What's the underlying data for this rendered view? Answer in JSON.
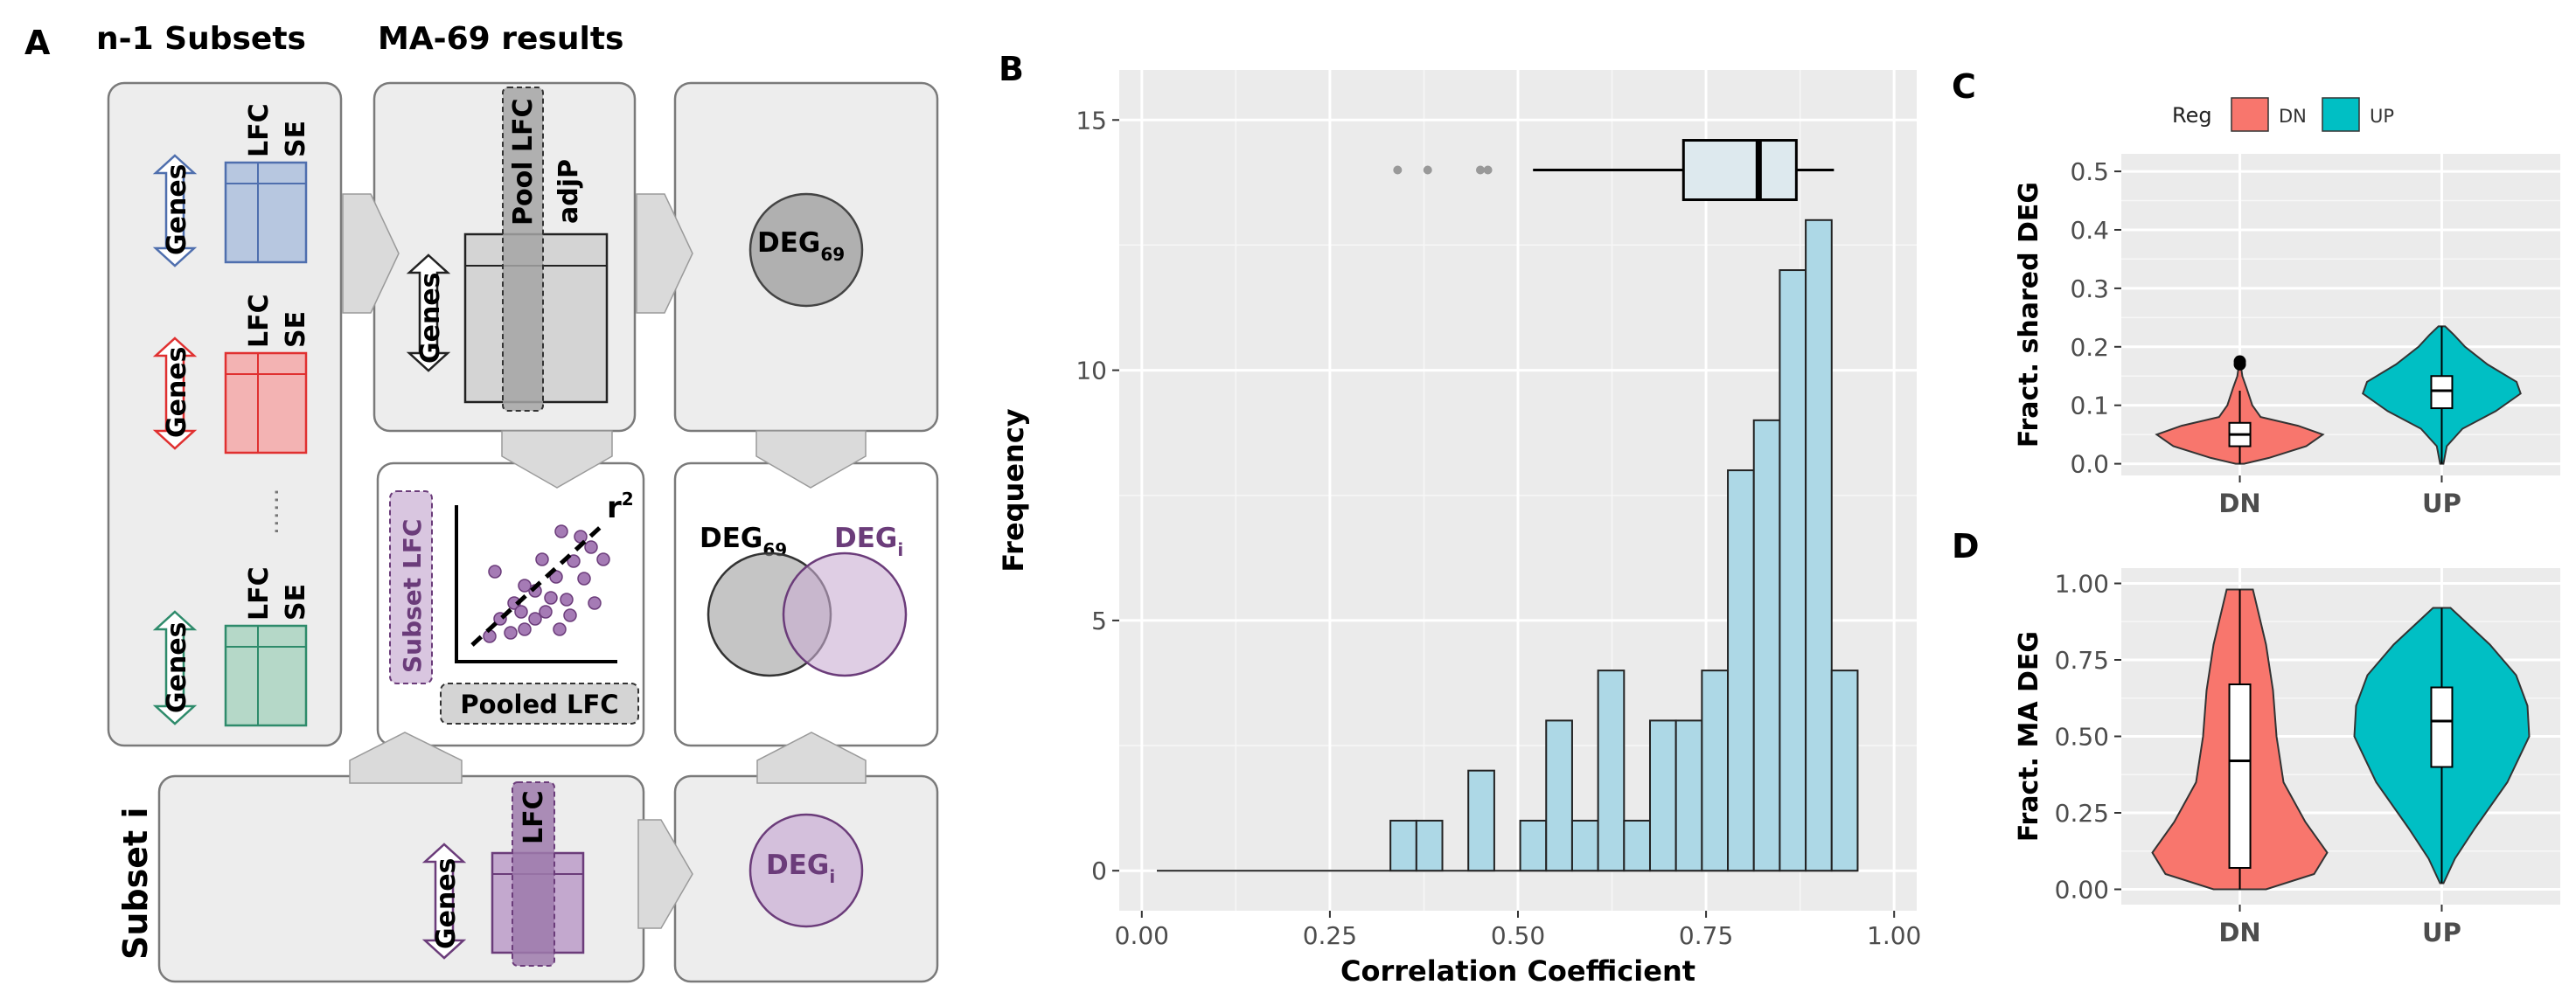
{
  "panel_a": {
    "letter": "A",
    "col1_header": "n-1 Subsets",
    "col2_header": "MA-69 results",
    "genes": "Genes",
    "lfc": "LFC",
    "se": "SE",
    "pool_lfc": "Pool LFC",
    "adjp": "adjP",
    "deg69_main": "DEG",
    "deg69_sub": "69",
    "degi_main": "DEG",
    "degi_sub": "i",
    "subset_lfc": "Subset LFC",
    "pooled_lfc": "Pooled LFC",
    "r2_main": "r",
    "r2_sup": "2",
    "subset_i": "Subset i",
    "ellipsis": "......"
  },
  "panel_b": {
    "letter": "B"
  },
  "panel_c": {
    "letter": "C"
  },
  "panel_d": {
    "letter": "D"
  },
  "colors": {
    "dn": "#F8766D",
    "up": "#00BFC4",
    "hist_fill": "#ADD8E6",
    "purple": "#6B3C7A",
    "plot_bg": "#EBEBEB",
    "box_grey": "#EDEDED"
  },
  "chart_data": [
    {
      "id": "B",
      "type": "bar",
      "title": "",
      "xlabel": "Correlation Coefficient",
      "ylabel": "Frequency",
      "xlim": [
        -0.03,
        1.03
      ],
      "ylim": [
        -0.8,
        16
      ],
      "x_ticks": [
        0.0,
        0.25,
        0.5,
        0.75,
        1.0
      ],
      "x_tick_labels": [
        "0.00",
        "0.25",
        "0.50",
        "0.75",
        "1.00"
      ],
      "y_ticks": [
        0,
        5,
        10,
        15
      ],
      "y_tick_labels": [
        "0",
        "5",
        "10",
        "15"
      ],
      "bins_start": 0.02,
      "bin_width": 0.0345,
      "counts": [
        0,
        0,
        0,
        0,
        0,
        0,
        0,
        0,
        0,
        1,
        1,
        0,
        2,
        0,
        1,
        3,
        1,
        4,
        1,
        3,
        3,
        4,
        8,
        9,
        12,
        13,
        4
      ],
      "boxplot": {
        "y": 14,
        "min": 0.52,
        "q1": 0.72,
        "median": 0.82,
        "q3": 0.87,
        "max": 0.92,
        "outliers": [
          0.34,
          0.38,
          0.45,
          0.46
        ]
      }
    },
    {
      "id": "C",
      "type": "violin",
      "ylabel": "Fract. shared DEG",
      "legend_title": "Reg",
      "legend": [
        "DN",
        "UP"
      ],
      "categories": [
        "DN",
        "UP"
      ],
      "ylim": [
        -0.02,
        0.53
      ],
      "y_ticks": [
        0,
        0.1,
        0.2,
        0.3,
        0.4,
        0.5
      ],
      "y_tick_labels": [
        "0.0",
        "0.1",
        "0.2",
        "0.3",
        "0.4",
        "0.5"
      ],
      "series": [
        {
          "name": "DN",
          "min": 0.0,
          "max": 0.17,
          "q1": 0.03,
          "median": 0.05,
          "q3": 0.07,
          "whisker_low": 0.0,
          "whisker_high": 0.125,
          "outliers": [
            0.17,
            0.175
          ],
          "profile": [
            [
              0.0,
              0.05
            ],
            [
              0.01,
              0.35
            ],
            [
              0.03,
              0.8
            ],
            [
              0.05,
              1.0
            ],
            [
              0.065,
              0.7
            ],
            [
              0.08,
              0.25
            ],
            [
              0.1,
              0.15
            ],
            [
              0.13,
              0.08
            ],
            [
              0.15,
              0.03
            ],
            [
              0.17,
              0.01
            ]
          ]
        },
        {
          "name": "UP",
          "min": 0.0,
          "max": 0.235,
          "q1": 0.095,
          "median": 0.125,
          "q3": 0.15,
          "whisker_low": 0.0,
          "whisker_high": 0.235,
          "outliers": [],
          "profile": [
            [
              0.0,
              0.02
            ],
            [
              0.03,
              0.06
            ],
            [
              0.06,
              0.25
            ],
            [
              0.09,
              0.65
            ],
            [
              0.12,
              0.95
            ],
            [
              0.14,
              0.9
            ],
            [
              0.17,
              0.55
            ],
            [
              0.2,
              0.28
            ],
            [
              0.22,
              0.15
            ],
            [
              0.235,
              0.04
            ]
          ]
        }
      ]
    },
    {
      "id": "D",
      "type": "violin",
      "ylabel": "Fract. MA DEG",
      "categories": [
        "DN",
        "UP"
      ],
      "ylim": [
        -0.05,
        1.05
      ],
      "y_ticks": [
        0,
        0.25,
        0.5,
        0.75,
        1.0
      ],
      "y_tick_labels": [
        "0.00",
        "0.25",
        "0.50",
        "0.75",
        "1.00"
      ],
      "series": [
        {
          "name": "DN",
          "min": 0.0,
          "max": 0.98,
          "q1": 0.07,
          "median": 0.42,
          "q3": 0.67,
          "whisker_low": 0.0,
          "whisker_high": 0.98,
          "outliers": [],
          "profile": [
            [
              0.0,
              0.3
            ],
            [
              0.05,
              0.85
            ],
            [
              0.12,
              1.0
            ],
            [
              0.22,
              0.75
            ],
            [
              0.35,
              0.5
            ],
            [
              0.5,
              0.42
            ],
            [
              0.65,
              0.38
            ],
            [
              0.8,
              0.3
            ],
            [
              0.92,
              0.2
            ],
            [
              0.98,
              0.15
            ]
          ]
        },
        {
          "name": "UP",
          "min": 0.02,
          "max": 0.92,
          "q1": 0.4,
          "median": 0.55,
          "q3": 0.66,
          "whisker_low": 0.02,
          "whisker_high": 0.92,
          "outliers": [],
          "profile": [
            [
              0.02,
              0.02
            ],
            [
              0.1,
              0.15
            ],
            [
              0.2,
              0.38
            ],
            [
              0.35,
              0.75
            ],
            [
              0.5,
              1.0
            ],
            [
              0.6,
              0.98
            ],
            [
              0.7,
              0.85
            ],
            [
              0.8,
              0.55
            ],
            [
              0.88,
              0.25
            ],
            [
              0.92,
              0.1
            ]
          ]
        }
      ]
    }
  ]
}
